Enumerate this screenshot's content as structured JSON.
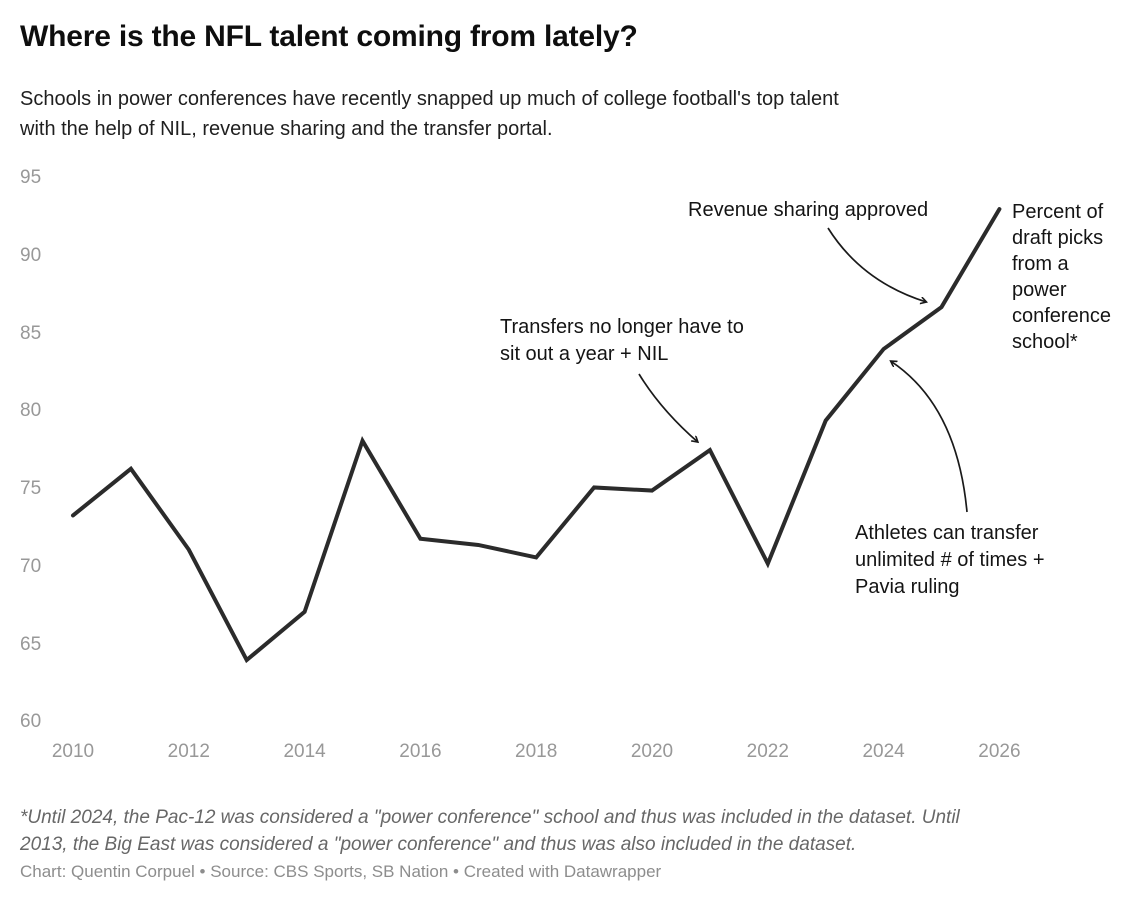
{
  "header": {
    "title": "Where is the NFL talent coming from lately?",
    "subtitle": "Schools in power conferences have recently snapped up much of college football's top talent\nwith the help of NIL, revenue sharing and the transfer portal."
  },
  "chart_data": {
    "type": "line",
    "title": "Where is the NFL talent coming from lately?",
    "series_label": "Percent of draft picks from a power conference school*",
    "x": [
      2010,
      2011,
      2012,
      2013,
      2014,
      2015,
      2016,
      2017,
      2018,
      2019,
      2020,
      2021,
      2022,
      2023,
      2024,
      2025,
      2026
    ],
    "values": [
      73.3,
      76.3,
      71.1,
      64.0,
      67.1,
      78.1,
      71.8,
      71.4,
      70.6,
      75.1,
      74.9,
      77.5,
      70.2,
      79.4,
      84.0,
      86.7,
      93.0
    ],
    "xlabel": "",
    "ylabel": "",
    "xlim": [
      2010,
      2026
    ],
    "ylim": [
      60,
      95
    ],
    "x_ticks": [
      2010,
      2012,
      2014,
      2016,
      2018,
      2020,
      2022,
      2024,
      2026
    ],
    "y_ticks": [
      95,
      90,
      85,
      80,
      75,
      70,
      65,
      60
    ],
    "grid": "off",
    "legend": "none",
    "line_color": "#2b2b2b",
    "tick_label_color": "#989898"
  },
  "annotations": {
    "transfers": {
      "text": "Transfers no longer have to\nsit out a year + NIL",
      "points_to_year": 2021
    },
    "revenue": {
      "text": "Revenue sharing approved",
      "points_to_year": 2025
    },
    "athletes": {
      "text": "Athletes can transfer\nunlimited # of times +\nPavia ruling",
      "points_to_year": 2024
    },
    "series": {
      "text": "Percent of\ndraft picks\nfrom a\npower\nconference\nschool*"
    }
  },
  "footer": {
    "footnote": "*Until 2024, the Pac-12 was considered a \"power conference\" school and thus was included in the dataset. Until\n2013, the Big East was considered a \"power conference\" and thus was also included in the dataset.",
    "credit": "Chart: Quentin Corpuel • Source: CBS Sports, SB Nation • Created with Datawrapper"
  }
}
